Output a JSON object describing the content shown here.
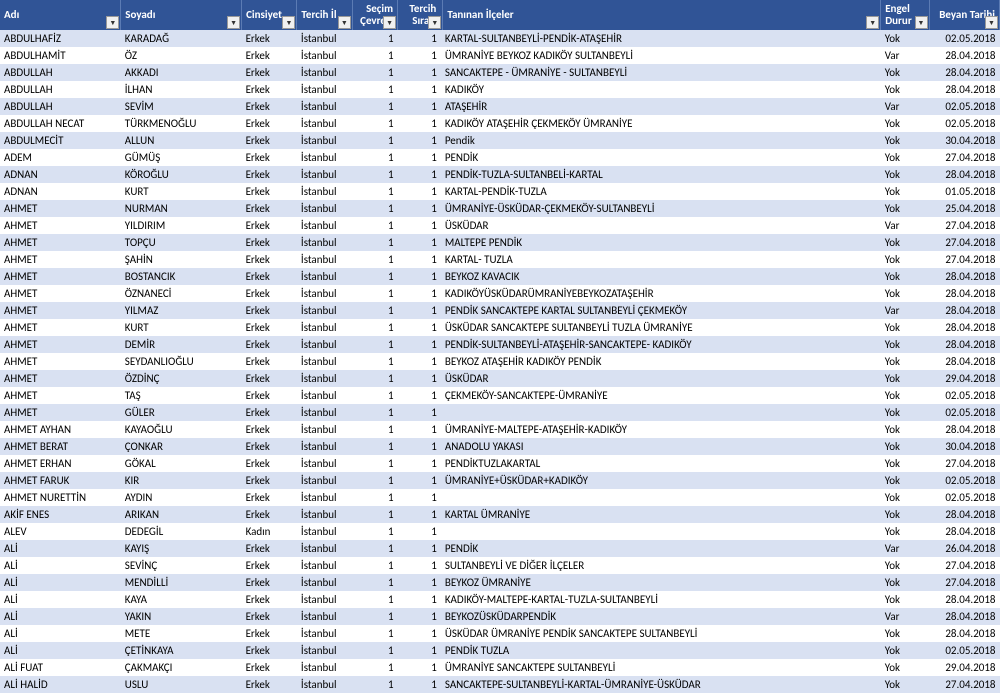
{
  "columns": [
    {
      "key": "adi",
      "label": "Adı",
      "cls": "col-adi"
    },
    {
      "key": "soyadi",
      "label": "Soyadı",
      "cls": "col-soyadi"
    },
    {
      "key": "cinsiyet",
      "label": "Cinsiyet",
      "cls": "col-cinsiyet"
    },
    {
      "key": "tercihil",
      "label": "Tercih İl",
      "cls": "col-tercihil"
    },
    {
      "key": "secim",
      "label": "Seçim Çevresi",
      "cls": "col-secim"
    },
    {
      "key": "sira",
      "label": "Tercih Sırası",
      "cls": "col-sira"
    },
    {
      "key": "ilceler",
      "label": "Tanınan İlçeler",
      "cls": "col-ilceler"
    },
    {
      "key": "engel",
      "label": "Engel Durur",
      "cls": "col-engel"
    },
    {
      "key": "tarih",
      "label": "Beyan Tarihi",
      "cls": "col-tarih"
    }
  ],
  "rows": [
    {
      "adi": "ABDULHAFİZ",
      "soyadi": "KARADAĞ",
      "cinsiyet": "Erkek",
      "tercihil": "İstanbul",
      "secim": "1",
      "sira": "1",
      "ilceler": "KARTAL-SULTANBEYLİ-PENDİK-ATAŞEHİR",
      "engel": "Yok",
      "tarih": "02.05.2018"
    },
    {
      "adi": "ABDULHAMİT",
      "soyadi": "ÖZ",
      "cinsiyet": "Erkek",
      "tercihil": "İstanbul",
      "secim": "1",
      "sira": "1",
      "ilceler": "ÜMRANİYE BEYKOZ KADIKÖY SULTANBEYLİ",
      "engel": "Var",
      "tarih": "28.04.2018"
    },
    {
      "adi": "ABDULLAH",
      "soyadi": "AKKADI",
      "cinsiyet": "Erkek",
      "tercihil": "İstanbul",
      "secim": "1",
      "sira": "1",
      "ilceler": "SANCAKTEPE - ÜMRANİYE - SULTANBEYLİ",
      "engel": "Yok",
      "tarih": "28.04.2018"
    },
    {
      "adi": "ABDULLAH",
      "soyadi": "İLHAN",
      "cinsiyet": "Erkek",
      "tercihil": "İstanbul",
      "secim": "1",
      "sira": "1",
      "ilceler": "KADIKÖY",
      "engel": "Yok",
      "tarih": "28.04.2018"
    },
    {
      "adi": "ABDULLAH",
      "soyadi": "SEVİM",
      "cinsiyet": "Erkek",
      "tercihil": "İstanbul",
      "secim": "1",
      "sira": "1",
      "ilceler": "ATAŞEHİR",
      "engel": "Var",
      "tarih": "02.05.2018"
    },
    {
      "adi": "ABDULLAH NECAT",
      "soyadi": "TÜRKMENOĞLU",
      "cinsiyet": "Erkek",
      "tercihil": "İstanbul",
      "secim": "1",
      "sira": "1",
      "ilceler": "KADIKÖY ATAŞEHİR ÇEKMEKÖY ÜMRANİYE",
      "engel": "Yok",
      "tarih": "02.05.2018"
    },
    {
      "adi": "ABDULMECİT",
      "soyadi": "ALLUN",
      "cinsiyet": "Erkek",
      "tercihil": "İstanbul",
      "secim": "1",
      "sira": "1",
      "ilceler": "Pendik",
      "engel": "Yok",
      "tarih": "30.04.2018"
    },
    {
      "adi": "ADEM",
      "soyadi": "GÜMÜŞ",
      "cinsiyet": "Erkek",
      "tercihil": "İstanbul",
      "secim": "1",
      "sira": "1",
      "ilceler": "PENDİK",
      "engel": "Yok",
      "tarih": "27.04.2018"
    },
    {
      "adi": "ADNAN",
      "soyadi": "KÖROĞLU",
      "cinsiyet": "Erkek",
      "tercihil": "İstanbul",
      "secim": "1",
      "sira": "1",
      "ilceler": "PENDİK-TUZLA-SULTANBELİ-KARTAL",
      "engel": "Yok",
      "tarih": "28.04.2018"
    },
    {
      "adi": "ADNAN",
      "soyadi": "KURT",
      "cinsiyet": "Erkek",
      "tercihil": "İstanbul",
      "secim": "1",
      "sira": "1",
      "ilceler": "KARTAL-PENDİK-TUZLA",
      "engel": "Yok",
      "tarih": "01.05.2018"
    },
    {
      "adi": "AHMET",
      "soyadi": "NURMAN",
      "cinsiyet": "Erkek",
      "tercihil": "İstanbul",
      "secim": "1",
      "sira": "1",
      "ilceler": "ÜMRANİYE-ÜSKÜDAR-ÇEKMEKÖY-SULTANBEYLİ",
      "engel": "Yok",
      "tarih": "25.04.2018"
    },
    {
      "adi": "AHMET",
      "soyadi": "YILDIRIM",
      "cinsiyet": "Erkek",
      "tercihil": "İstanbul",
      "secim": "1",
      "sira": "1",
      "ilceler": "ÜSKÜDAR",
      "engel": "Var",
      "tarih": "27.04.2018"
    },
    {
      "adi": "AHMET",
      "soyadi": "TOPÇU",
      "cinsiyet": "Erkek",
      "tercihil": "İstanbul",
      "secim": "1",
      "sira": "1",
      "ilceler": "MALTEPE PENDİK",
      "engel": "Yok",
      "tarih": "27.04.2018"
    },
    {
      "adi": "AHMET",
      "soyadi": "ŞAHİN",
      "cinsiyet": "Erkek",
      "tercihil": "İstanbul",
      "secim": "1",
      "sira": "1",
      "ilceler": "KARTAL- TUZLA",
      "engel": "Yok",
      "tarih": "27.04.2018"
    },
    {
      "adi": "AHMET",
      "soyadi": "BOSTANCIK",
      "cinsiyet": "Erkek",
      "tercihil": "İstanbul",
      "secim": "1",
      "sira": "1",
      "ilceler": "BEYKOZ KAVACIK",
      "engel": "Yok",
      "tarih": "28.04.2018"
    },
    {
      "adi": "AHMET",
      "soyadi": "ÖZNANECİ",
      "cinsiyet": "Erkek",
      "tercihil": "İstanbul",
      "secim": "1",
      "sira": "1",
      "ilceler": "KADIKÖYÜSKÜDARÜMRANİYEBEYKOZATAŞEHİR",
      "engel": "Yok",
      "tarih": "28.04.2018"
    },
    {
      "adi": "AHMET",
      "soyadi": "YILMAZ",
      "cinsiyet": "Erkek",
      "tercihil": "İstanbul",
      "secim": "1",
      "sira": "1",
      "ilceler": "PENDİK SANCAKTEPE KARTAL SULTANBEYLİ ÇEKMEKÖY",
      "engel": "Var",
      "tarih": "28.04.2018"
    },
    {
      "adi": "AHMET",
      "soyadi": "KURT",
      "cinsiyet": "Erkek",
      "tercihil": "İstanbul",
      "secim": "1",
      "sira": "1",
      "ilceler": "ÜSKÜDAR  SANCAKTEPE SULTANBEYLİ TUZLA ÜMRANİYE",
      "engel": "Yok",
      "tarih": "28.04.2018"
    },
    {
      "adi": "AHMET",
      "soyadi": "DEMİR",
      "cinsiyet": "Erkek",
      "tercihil": "İstanbul",
      "secim": "1",
      "sira": "1",
      "ilceler": "PENDİK-SULTANBEYLİ-ATAŞEHİR-SANCAKTEPE- KADIKÖY",
      "engel": "Yok",
      "tarih": "28.04.2018"
    },
    {
      "adi": "AHMET",
      "soyadi": "SEYDANLIOĞLU",
      "cinsiyet": "Erkek",
      "tercihil": "İstanbul",
      "secim": "1",
      "sira": "1",
      "ilceler": "BEYKOZ ATAŞEHİR KADIKÖY PENDİK",
      "engel": "Yok",
      "tarih": "28.04.2018"
    },
    {
      "adi": "AHMET",
      "soyadi": "ÖZDİNÇ",
      "cinsiyet": "Erkek",
      "tercihil": "İstanbul",
      "secim": "1",
      "sira": "1",
      "ilceler": "ÜSKÜDAR",
      "engel": "Yok",
      "tarih": "29.04.2018"
    },
    {
      "adi": "AHMET",
      "soyadi": "TAŞ",
      "cinsiyet": "Erkek",
      "tercihil": "İstanbul",
      "secim": "1",
      "sira": "1",
      "ilceler": "ÇEKMEKÖY-SANCAKTEPE-ÜMRANİYE",
      "engel": "Yok",
      "tarih": "02.05.2018"
    },
    {
      "adi": "AHMET",
      "soyadi": "GÜLER",
      "cinsiyet": "Erkek",
      "tercihil": "İstanbul",
      "secim": "1",
      "sira": "1",
      "ilceler": "",
      "engel": "Yok",
      "tarih": "02.05.2018"
    },
    {
      "adi": "AHMET AYHAN",
      "soyadi": "KAYAOĞLU",
      "cinsiyet": "Erkek",
      "tercihil": "İstanbul",
      "secim": "1",
      "sira": "1",
      "ilceler": "ÜMRANİYE-MALTEPE-ATAŞEHİR-KADIKÖY",
      "engel": "Yok",
      "tarih": "28.04.2018"
    },
    {
      "adi": "AHMET BERAT",
      "soyadi": "ÇONKAR",
      "cinsiyet": "Erkek",
      "tercihil": "İstanbul",
      "secim": "1",
      "sira": "1",
      "ilceler": "ANADOLU YAKASI",
      "engel": "Yok",
      "tarih": "30.04.2018"
    },
    {
      "adi": "AHMET ERHAN",
      "soyadi": "GÖKAL",
      "cinsiyet": "Erkek",
      "tercihil": "İstanbul",
      "secim": "1",
      "sira": "1",
      "ilceler": "PENDİKTUZLAKARTAL",
      "engel": "Yok",
      "tarih": "27.04.2018"
    },
    {
      "adi": "AHMET FARUK",
      "soyadi": "KIR",
      "cinsiyet": "Erkek",
      "tercihil": "İstanbul",
      "secim": "1",
      "sira": "1",
      "ilceler": "ÜMRANİYE+ÜSKÜDAR+KADIKÖY",
      "engel": "Yok",
      "tarih": "02.05.2018"
    },
    {
      "adi": "AHMET NURETTİN",
      "soyadi": "AYDIN",
      "cinsiyet": "Erkek",
      "tercihil": "İstanbul",
      "secim": "1",
      "sira": "1",
      "ilceler": "",
      "engel": "Yok",
      "tarih": "02.05.2018"
    },
    {
      "adi": "AKİF ENES",
      "soyadi": "ARIKAN",
      "cinsiyet": "Erkek",
      "tercihil": "İstanbul",
      "secim": "1",
      "sira": "1",
      "ilceler": "KARTAL ÜMRANİYE",
      "engel": "Yok",
      "tarih": "28.04.2018"
    },
    {
      "adi": "ALEV",
      "soyadi": "DEDEGİL",
      "cinsiyet": "Kadın",
      "tercihil": "İstanbul",
      "secim": "1",
      "sira": "1",
      "ilceler": "",
      "engel": "Yok",
      "tarih": "28.04.2018"
    },
    {
      "adi": "ALİ",
      "soyadi": "KAYIŞ",
      "cinsiyet": "Erkek",
      "tercihil": "İstanbul",
      "secim": "1",
      "sira": "1",
      "ilceler": "PENDİK",
      "engel": "Var",
      "tarih": "26.04.2018"
    },
    {
      "adi": "ALİ",
      "soyadi": "SEVİNÇ",
      "cinsiyet": "Erkek",
      "tercihil": "İstanbul",
      "secim": "1",
      "sira": "1",
      "ilceler": "SULTANBEYLİ VE DİĞER İLÇELER",
      "engel": "Yok",
      "tarih": "27.04.2018"
    },
    {
      "adi": "ALİ",
      "soyadi": "MENDİLLİ",
      "cinsiyet": "Erkek",
      "tercihil": "İstanbul",
      "secim": "1",
      "sira": "1",
      "ilceler": "BEYKOZ ÜMRANİYE",
      "engel": "Yok",
      "tarih": "27.04.2018"
    },
    {
      "adi": "ALİ",
      "soyadi": "KAYA",
      "cinsiyet": "Erkek",
      "tercihil": "İstanbul",
      "secim": "1",
      "sira": "1",
      "ilceler": "KADIKÖY-MALTEPE-KARTAL-TUZLA-SULTANBEYLİ",
      "engel": "Yok",
      "tarih": "28.04.2018"
    },
    {
      "adi": "ALİ",
      "soyadi": "YAKIN",
      "cinsiyet": "Erkek",
      "tercihil": "İstanbul",
      "secim": "1",
      "sira": "1",
      "ilceler": "BEYKOZÜSKÜDARPENDİK",
      "engel": "Var",
      "tarih": "28.04.2018"
    },
    {
      "adi": "ALİ",
      "soyadi": "METE",
      "cinsiyet": "Erkek",
      "tercihil": "İstanbul",
      "secim": "1",
      "sira": "1",
      "ilceler": "ÜSKÜDAR ÜMRANİYE PENDİK SANCAKTEPE SULTANBEYLİ",
      "engel": "Yok",
      "tarih": "28.04.2018"
    },
    {
      "adi": "ALİ",
      "soyadi": "ÇETİNKAYA",
      "cinsiyet": "Erkek",
      "tercihil": "İstanbul",
      "secim": "1",
      "sira": "1",
      "ilceler": "PENDİK TUZLA",
      "engel": "Yok",
      "tarih": "02.05.2018"
    },
    {
      "adi": "ALİ FUAT",
      "soyadi": "ÇAKMAKÇI",
      "cinsiyet": "Erkek",
      "tercihil": "İstanbul",
      "secim": "1",
      "sira": "1",
      "ilceler": "ÜMRANİYE SANCAKTEPE SULTANBEYLİ",
      "engel": "Yok",
      "tarih": "29.04.2018"
    },
    {
      "adi": "ALİ HALİD",
      "soyadi": "USLU",
      "cinsiyet": "Erkek",
      "tercihil": "İstanbul",
      "secim": "1",
      "sira": "1",
      "ilceler": "SANCAKTEPE-SULTANBEYLİ-KARTAL-ÜMRANİYE-ÜSKÜDAR",
      "engel": "Yok",
      "tarih": "27.04.2018"
    }
  ]
}
